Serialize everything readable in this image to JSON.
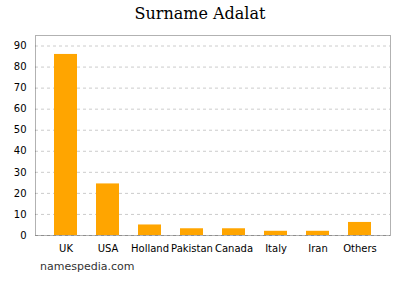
{
  "chart_data": {
    "type": "bar",
    "title": "Surname Adalat",
    "categories": [
      "UK",
      "USA",
      "Holland",
      "Pakistan",
      "Canada",
      "Italy",
      "Iran",
      "Others"
    ],
    "values": [
      86,
      24.5,
      5,
      3.2,
      3.2,
      2,
      2,
      6.2
    ],
    "color": "#FFA500",
    "ylim": [
      0,
      95
    ],
    "yticks": [
      0,
      10,
      20,
      30,
      40,
      50,
      60,
      70,
      80,
      90
    ],
    "grid": true,
    "caption": "namespedia.com"
  }
}
